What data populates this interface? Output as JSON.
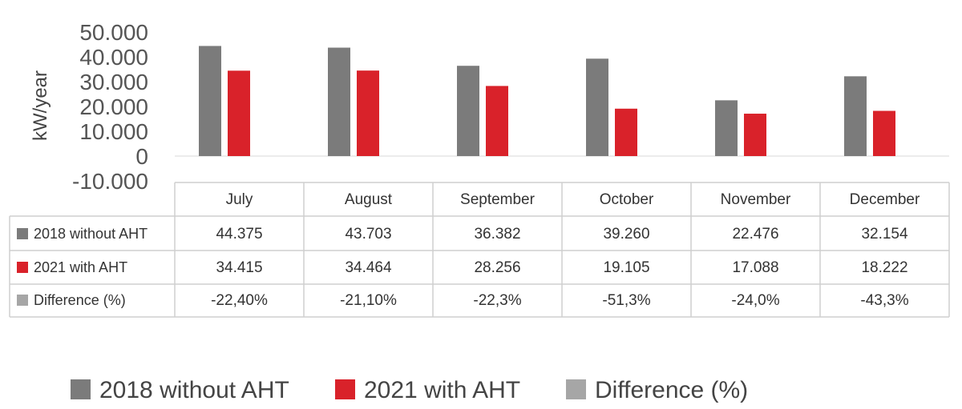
{
  "chart_data": {
    "type": "bar",
    "ylabel": "kW/year",
    "ylim": [
      -10000,
      50000
    ],
    "yticks": [
      50000,
      40000,
      30000,
      20000,
      10000,
      0,
      -10000
    ],
    "ytick_labels": [
      "50.000",
      "40.000",
      "30.000",
      "20.000",
      "10.000",
      "0",
      "-10.000"
    ],
    "categories": [
      "July",
      "August",
      "September",
      "October",
      "November",
      "December"
    ],
    "series": [
      {
        "name": "2018 without AHT",
        "color": "#7b7b7b",
        "values": [
          44375,
          43703,
          36382,
          39260,
          22476,
          32154
        ],
        "display": [
          "44.375",
          "43.703",
          "36.382",
          "39.260",
          "22.476",
          "32.154"
        ]
      },
      {
        "name": "2021 with AHT",
        "color": "#d9222a",
        "values": [
          34415,
          34464,
          28256,
          19105,
          17088,
          18222
        ],
        "display": [
          "34.415",
          "34.464",
          "28.256",
          "19.105",
          "17.088",
          "18.222"
        ]
      },
      {
        "name": "Difference (%)",
        "color": "#a6a6a6",
        "values": [
          -22.4,
          -21.1,
          -22.3,
          -51.3,
          -24.0,
          -43.3
        ],
        "display": [
          "-22,40%",
          "-21,10%",
          "-22,3%",
          "-51,3%",
          "-24,0%",
          "-43,3%"
        ]
      }
    ],
    "legend_position": "bottom-left",
    "data_table": true,
    "grid": false
  }
}
